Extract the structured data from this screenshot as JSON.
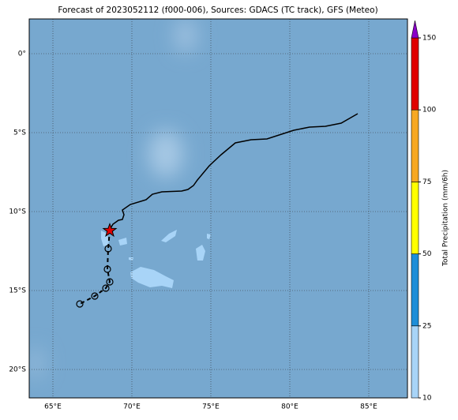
{
  "title": "Forecast of 2023052112 (f000-006), Sources: GDACS (TC track), GFS (Meteo)",
  "map": {
    "lonlim": [
      63.5,
      87.45
    ],
    "latlim": [
      -21.8,
      2.2
    ],
    "lon_ticks": [
      {
        "value": 65,
        "label": "65°E"
      },
      {
        "value": 70,
        "label": "70°E"
      },
      {
        "value": 75,
        "label": "75°E"
      },
      {
        "value": 80,
        "label": "80°E"
      },
      {
        "value": 85,
        "label": "85°E"
      }
    ],
    "lat_ticks": [
      {
        "value": 0,
        "label": "0°"
      },
      {
        "value": -5,
        "label": "5°S"
      },
      {
        "value": -10,
        "label": "10°S"
      },
      {
        "value": -15,
        "label": "15°S"
      },
      {
        "value": -20,
        "label": "20°S"
      }
    ],
    "observed_track": {
      "lon": [
        68.6,
        68.8,
        69.15,
        69.4,
        69.5,
        69.4,
        69.9,
        70.9,
        71.3,
        71.9,
        73.15,
        73.55,
        73.9,
        74.15,
        74.9,
        75.65,
        76.55,
        77.55,
        78.55,
        80.25,
        81.25,
        82.25,
        83.25,
        84.3
      ],
      "lat": [
        -11.15,
        -10.8,
        -10.55,
        -10.5,
        -10.2,
        -9.9,
        -9.55,
        -9.25,
        -8.9,
        -8.75,
        -8.7,
        -8.6,
        -8.35,
        -8.0,
        -7.1,
        -6.4,
        -5.65,
        -5.45,
        -5.4,
        -4.85,
        -4.65,
        -4.6,
        -4.4,
        -3.8
      ]
    },
    "forecast_track": {
      "lon": [
        68.6,
        68.5,
        68.45,
        68.6,
        68.35,
        67.65,
        66.7
      ],
      "lat": [
        -11.15,
        -12.35,
        -13.65,
        -14.45,
        -14.85,
        -15.35,
        -15.85
      ]
    },
    "storm_position": {
      "lon": 68.6,
      "lat": -11.2
    }
  },
  "colorbar": {
    "label": "Total Precipitation (mm/6h)",
    "ticks": [
      10,
      25,
      50,
      75,
      100,
      150
    ],
    "colors": [
      "#a8d4f7",
      "#1e8ed8",
      "#ffff00",
      "#f7a823",
      "#e00000"
    ],
    "extend_color": "#8a00c8"
  }
}
